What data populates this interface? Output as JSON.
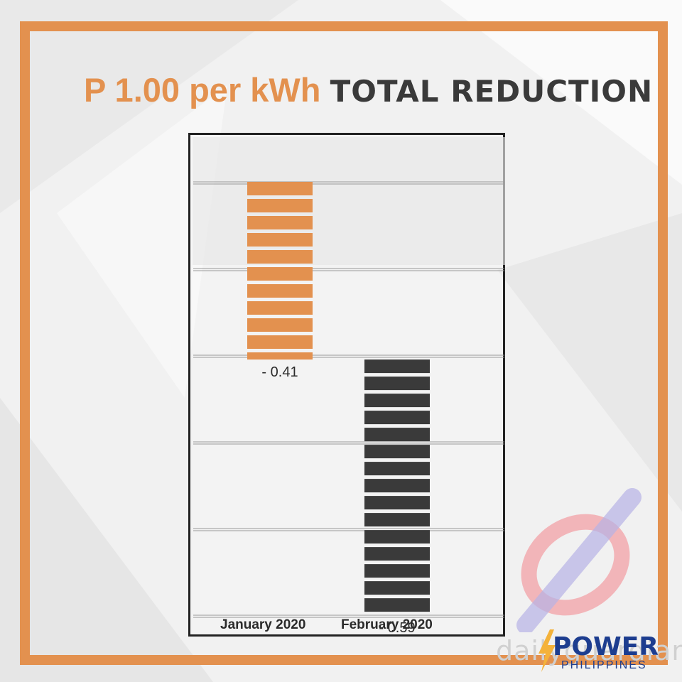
{
  "headline": {
    "part1": "P 1.00 per kWh",
    "part2": "TOTAL REDUCTION"
  },
  "colors": {
    "frame": "#e3914f",
    "january_bar": "#e3914f",
    "february_bar": "#3a3a3a",
    "headline_dark": "#3a3a3a",
    "brand_blue": "#1d3d8f"
  },
  "chart_data": {
    "type": "bar",
    "categories": [
      "January 2020",
      "February 2020"
    ],
    "values": [
      -0.41,
      -0.59
    ],
    "data_labels": [
      "- 0.41",
      "- 0.59"
    ],
    "bar_colors": [
      "#e3914f",
      "#3a3a3a"
    ],
    "title": "P 1.00 per kWh TOTAL REDUCTION",
    "xlabel": "",
    "ylabel": "",
    "ylim": [
      -1.0,
      0
    ],
    "stacked_bars": true,
    "grid": true,
    "legend": "none"
  },
  "brand": {
    "watermark": "dailyguardian",
    "name": "POWER",
    "sub": "PHILIPPINES",
    "logo_icon": "bolt-icon"
  }
}
